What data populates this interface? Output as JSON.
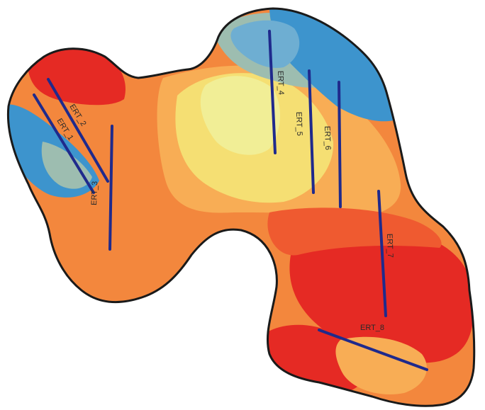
{
  "map": {
    "colors": {
      "outline": "#1a1a1a",
      "line": "#1f2a8c",
      "red": "#e52a24",
      "orange_red": "#ef5a30",
      "orange": "#f3873d",
      "light_orange": "#f8ad55",
      "yellow": "#f5df73",
      "pale_yellow": "#f1ee96",
      "grey_green": "#9dbdb0",
      "light_blue": "#6eaed2",
      "blue": "#3d94cd"
    },
    "survey_lines": [
      {
        "id": "ERT_1",
        "label": "ERT_1"
      },
      {
        "id": "ERT_2",
        "label": "ERT_2"
      },
      {
        "id": "ERT_3",
        "label": "ERT_3"
      },
      {
        "id": "ERT_4",
        "label": "ERT_4"
      },
      {
        "id": "ERT_5",
        "label": "ERT_5"
      },
      {
        "id": "ERT_6",
        "label": "ERT_6"
      },
      {
        "id": "ERT_7",
        "label": "ERT_7"
      },
      {
        "id": "ERT_8",
        "label": "ERT_8"
      }
    ]
  }
}
